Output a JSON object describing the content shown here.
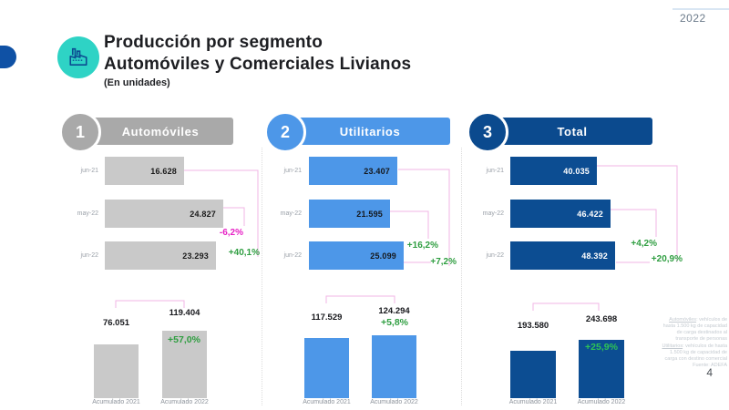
{
  "slide": {
    "year": "2022",
    "title_line1": "Producción por segmento",
    "title_line2": "Automóviles y Comerciales Livianos",
    "subtitle": "(En unidades)",
    "page_number": "4"
  },
  "footnote": {
    "items": [
      {
        "term": "Automóviles",
        "text": ": vehículos de hasta 1.500 kg de capacidad de carga destinados al transporte de personas"
      },
      {
        "term": "Utilitarios",
        "text": ": vehículos de hasta 1.500 kg de capacidad de carga con destino comercial"
      }
    ],
    "source": "Fuente: ADEFA"
  },
  "chart_data": [
    {
      "type": "bar",
      "orientation": "horizontal",
      "number": "1",
      "title": "Automóviles",
      "colors": {
        "bar": "#c9c9c9",
        "header": "#a9a9a9",
        "value_text": "#1b1b1b"
      },
      "categories": [
        "jun-21",
        "may-22",
        "jun-22"
      ],
      "values": [
        16628,
        24827,
        23293
      ],
      "value_labels": [
        "16.628",
        "24.827",
        "23.293"
      ],
      "changes": [
        {
          "label": "-6,2%",
          "color": "#e620c5",
          "compares": "jun-22 vs may-22"
        },
        {
          "label": "+40,1%",
          "color": "#2f9e41",
          "compares": "jun-22 vs jun-21"
        }
      ],
      "accumulated": {
        "type": "bar",
        "categories": [
          "Acumulado 2021",
          "Acumulado 2022"
        ],
        "values": [
          76051,
          119404
        ],
        "value_labels": [
          "76.051",
          "119.404"
        ],
        "change_label": "+57,0%",
        "change_color": "#2f9e41"
      }
    },
    {
      "type": "bar",
      "orientation": "horizontal",
      "number": "2",
      "title": "Utilitarios",
      "colors": {
        "bar": "#4d97e8",
        "header": "#4d97e8",
        "value_text": "#15181c"
      },
      "categories": [
        "jun-21",
        "may-22",
        "jun-22"
      ],
      "values": [
        23407,
        21595,
        25099
      ],
      "value_labels": [
        "23.407",
        "21.595",
        "25.099"
      ],
      "changes": [
        {
          "label": "+16,2%",
          "color": "#2f9e41",
          "compares": "jun-22 vs may-22"
        },
        {
          "label": "+7,2%",
          "color": "#2f9e41",
          "compares": "jun-22 vs jun-21"
        }
      ],
      "accumulated": {
        "type": "bar",
        "categories": [
          "Acumulado 2021",
          "Acumulado 2022"
        ],
        "values": [
          117529,
          124294
        ],
        "value_labels": [
          "117.529",
          "124.294"
        ],
        "change_label": "+5,8%",
        "change_color": "#2f9e41"
      }
    },
    {
      "type": "bar",
      "orientation": "horizontal",
      "number": "3",
      "title": "Total",
      "colors": {
        "bar": "#0c4d92",
        "header": "#0b4a8e",
        "value_text": "#ffffff"
      },
      "categories": [
        "jun-21",
        "may-22",
        "jun-22"
      ],
      "values": [
        40035,
        46422,
        48392
      ],
      "value_labels": [
        "40.035",
        "46.422",
        "48.392"
      ],
      "changes": [
        {
          "label": "+4,2%",
          "color": "#2f9e41",
          "compares": "jun-22 vs may-22"
        },
        {
          "label": "+20,9%",
          "color": "#2f9e41",
          "compares": "jun-22 vs jun-21"
        }
      ],
      "accumulated": {
        "type": "bar",
        "categories": [
          "Acumulado 2021",
          "Acumulado 2022"
        ],
        "values": [
          193580,
          243698
        ],
        "value_labels": [
          "193.580",
          "243.698"
        ],
        "change_label": "+25,9%",
        "change_color": "#2ec455"
      }
    }
  ]
}
